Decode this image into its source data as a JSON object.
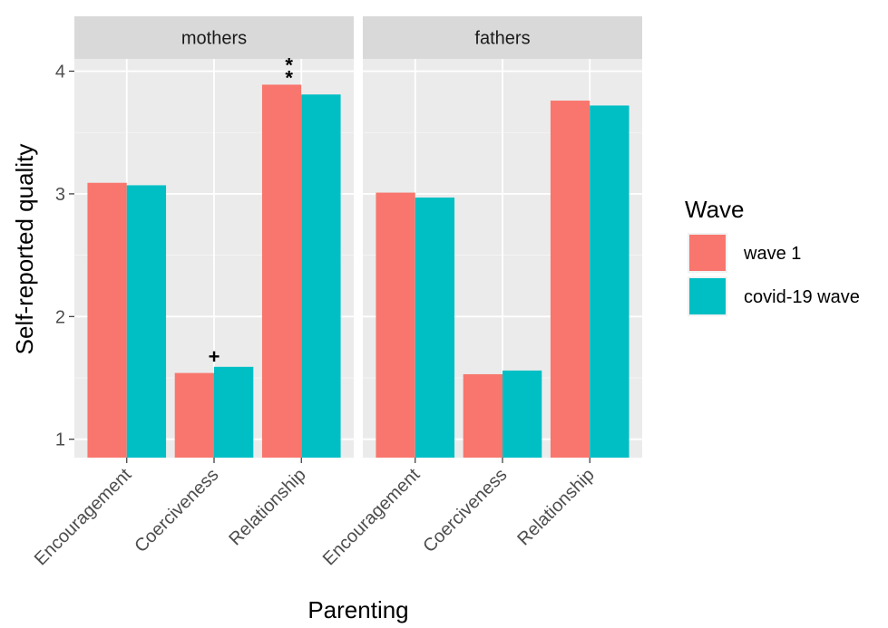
{
  "chart_data": {
    "type": "bar",
    "xlabel": "Parenting",
    "ylabel": "Self-reported quality",
    "ylim": [
      0.85,
      4.1
    ],
    "yticks": [
      1,
      2,
      3,
      4
    ],
    "grid": true,
    "legend_position": "right",
    "legend_title": "Wave",
    "categories": [
      "Encouragement",
      "Coerciveness",
      "Relationship"
    ],
    "panels": [
      {
        "name": "mothers",
        "series": [
          {
            "name": "wave 1",
            "values": [
              3.09,
              1.54,
              3.89
            ]
          },
          {
            "name": "covid-19 wave",
            "values": [
              3.07,
              1.59,
              3.81
            ]
          }
        ],
        "annotations": [
          {
            "category": "Coerciveness",
            "text": "+"
          },
          {
            "category": "Relationship",
            "text": "**"
          }
        ]
      },
      {
        "name": "fathers",
        "series": [
          {
            "name": "wave 1",
            "values": [
              3.01,
              1.53,
              3.76
            ]
          },
          {
            "name": "covid-19 wave",
            "values": [
              2.97,
              1.56,
              3.72
            ]
          }
        ],
        "annotations": []
      }
    ]
  },
  "colors": {
    "wave 1": "#F8766D",
    "covid-19 wave": "#00BFC4",
    "panel_bg": "#EBEBEB",
    "strip_bg": "#D9D9D9",
    "grid_major": "#FFFFFF"
  }
}
